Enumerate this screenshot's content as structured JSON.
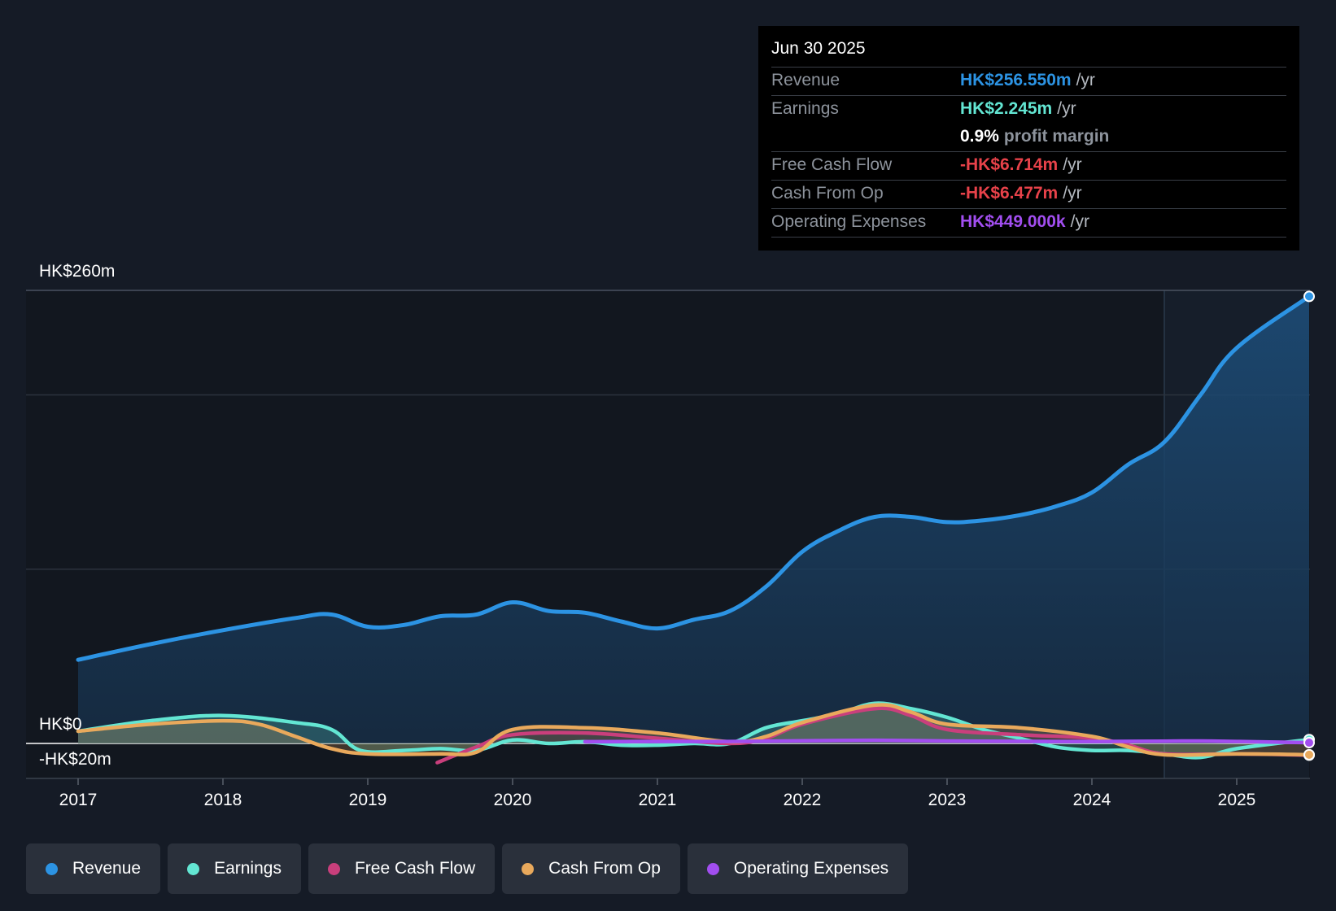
{
  "tooltip": {
    "date": "Jun 30 2025",
    "rows": [
      {
        "label": "Revenue",
        "value": "HK$256.550m",
        "unit": "/yr",
        "color": "#2c93e3"
      },
      {
        "label": "Earnings",
        "value": "HK$2.245m",
        "unit": "/yr",
        "color": "#63e6d3"
      },
      {
        "label": "",
        "value": "0.9%",
        "unit": "profit margin",
        "color": "#ffffff"
      },
      {
        "label": "Free Cash Flow",
        "value": "-HK$6.714m",
        "unit": "/yr",
        "color": "#e8424a"
      },
      {
        "label": "Cash From Op",
        "value": "-HK$6.477m",
        "unit": "/yr",
        "color": "#e8424a"
      },
      {
        "label": "Operating Expenses",
        "value": "HK$449.000k",
        "unit": "/yr",
        "color": "#a24ef0"
      }
    ]
  },
  "legend": [
    {
      "label": "Revenue",
      "color": "#2c93e3"
    },
    {
      "label": "Earnings",
      "color": "#63e6d3"
    },
    {
      "label": "Free Cash Flow",
      "color": "#c93f7c"
    },
    {
      "label": "Cash From Op",
      "color": "#e9a95c"
    },
    {
      "label": "Operating Expenses",
      "color": "#a24ef0"
    }
  ],
  "chart_data": {
    "type": "line",
    "y_axis_labels": [
      "HK$260m",
      "HK$0",
      "-HK$20m"
    ],
    "ylim": [
      -20,
      260
    ],
    "xlim": [
      2017,
      2025.5
    ],
    "x_ticks": [
      "2017",
      "2018",
      "2019",
      "2020",
      "2021",
      "2022",
      "2023",
      "2024",
      "2025"
    ],
    "forecast_start": 2024.5,
    "series": [
      {
        "name": "Revenue",
        "color": "#2c93e3",
        "fill": true,
        "points": [
          [
            2017,
            48
          ],
          [
            2017.5,
            57
          ],
          [
            2018,
            65
          ],
          [
            2018.5,
            72
          ],
          [
            2018.75,
            74
          ],
          [
            2019,
            67
          ],
          [
            2019.25,
            68
          ],
          [
            2019.5,
            73
          ],
          [
            2019.75,
            74
          ],
          [
            2020,
            81
          ],
          [
            2020.25,
            76
          ],
          [
            2020.5,
            75
          ],
          [
            2020.75,
            70
          ],
          [
            2021,
            66
          ],
          [
            2021.25,
            71
          ],
          [
            2021.5,
            76
          ],
          [
            2021.75,
            90
          ],
          [
            2022,
            110
          ],
          [
            2022.25,
            122
          ],
          [
            2022.5,
            130
          ],
          [
            2022.75,
            130
          ],
          [
            2023,
            127
          ],
          [
            2023.25,
            128
          ],
          [
            2023.5,
            131
          ],
          [
            2023.75,
            136
          ],
          [
            2024,
            144
          ],
          [
            2024.25,
            160
          ],
          [
            2024.5,
            173
          ],
          [
            2024.75,
            200
          ],
          [
            2025,
            227
          ],
          [
            2025.5,
            256.55
          ]
        ]
      },
      {
        "name": "Earnings",
        "color": "#63e6d3",
        "fill": true,
        "points": [
          [
            2017,
            7
          ],
          [
            2017.5,
            13
          ],
          [
            2018,
            16
          ],
          [
            2018.5,
            12
          ],
          [
            2018.75,
            8
          ],
          [
            2018.95,
            -4
          ],
          [
            2019.25,
            -4
          ],
          [
            2019.5,
            -3
          ],
          [
            2019.75,
            -4
          ],
          [
            2020,
            2
          ],
          [
            2020.25,
            0
          ],
          [
            2020.5,
            1
          ],
          [
            2020.75,
            -1
          ],
          [
            2021,
            -1
          ],
          [
            2021.25,
            0
          ],
          [
            2021.5,
            0
          ],
          [
            2021.75,
            9
          ],
          [
            2022,
            13
          ],
          [
            2022.25,
            17
          ],
          [
            2022.5,
            23
          ],
          [
            2022.75,
            20
          ],
          [
            2023,
            15
          ],
          [
            2023.25,
            8
          ],
          [
            2023.5,
            3
          ],
          [
            2023.75,
            -2
          ],
          [
            2024,
            -4
          ],
          [
            2024.25,
            -4
          ],
          [
            2024.5,
            -6
          ],
          [
            2024.75,
            -8
          ],
          [
            2025,
            -3
          ],
          [
            2025.5,
            2.245
          ]
        ]
      },
      {
        "name": "Free Cash Flow",
        "color": "#c93f7c",
        "fill": false,
        "points": [
          [
            2019.48,
            -11
          ],
          [
            2019.75,
            -2
          ],
          [
            2020,
            5
          ],
          [
            2020.5,
            6
          ],
          [
            2021,
            3
          ],
          [
            2021.5,
            0
          ],
          [
            2021.75,
            3
          ],
          [
            2022,
            11
          ],
          [
            2022.5,
            20
          ],
          [
            2022.75,
            16
          ],
          [
            2023,
            8
          ],
          [
            2023.5,
            5
          ],
          [
            2024,
            3
          ],
          [
            2024.25,
            -1
          ],
          [
            2024.5,
            -6
          ],
          [
            2025,
            -6
          ],
          [
            2025.5,
            -6.714
          ]
        ]
      },
      {
        "name": "Cash From Op",
        "color": "#e9a95c",
        "fill": true,
        "points": [
          [
            2017,
            7
          ],
          [
            2017.5,
            11
          ],
          [
            2018,
            13
          ],
          [
            2018.25,
            11
          ],
          [
            2018.5,
            4
          ],
          [
            2018.75,
            -3
          ],
          [
            2019,
            -6
          ],
          [
            2019.5,
            -6
          ],
          [
            2019.75,
            -5
          ],
          [
            2020,
            8
          ],
          [
            2020.5,
            9
          ],
          [
            2021,
            6
          ],
          [
            2021.5,
            1
          ],
          [
            2021.75,
            4
          ],
          [
            2022,
            12
          ],
          [
            2022.5,
            22
          ],
          [
            2022.75,
            18
          ],
          [
            2023,
            11
          ],
          [
            2023.5,
            9
          ],
          [
            2024,
            4
          ],
          [
            2024.25,
            -2
          ],
          [
            2024.5,
            -6.5
          ],
          [
            2025,
            -6
          ],
          [
            2025.5,
            -6.477
          ]
        ]
      },
      {
        "name": "Operating Expenses",
        "color": "#a24ef0",
        "fill": false,
        "points": [
          [
            2020.5,
            1
          ],
          [
            2021,
            1.1
          ],
          [
            2021.5,
            1.1
          ],
          [
            2022,
            1.5
          ],
          [
            2022.5,
            1.8
          ],
          [
            2023,
            1.4
          ],
          [
            2023.5,
            1.2
          ],
          [
            2024,
            1.1
          ],
          [
            2024.5,
            1.3
          ],
          [
            2024.75,
            1.4
          ],
          [
            2025,
            1.1
          ],
          [
            2025.5,
            0.449
          ]
        ]
      }
    ]
  }
}
